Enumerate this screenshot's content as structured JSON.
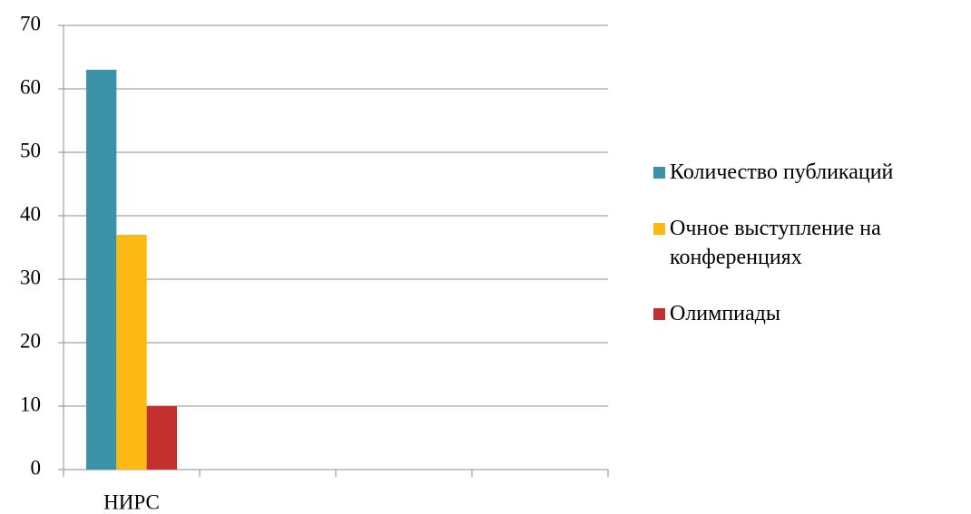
{
  "chart_data": {
    "type": "bar",
    "categories": [
      "НИРС",
      null,
      null,
      null
    ],
    "series": [
      {
        "name": "Количество публикаций",
        "color": "#3a93a8",
        "values": [
          63,
          null,
          null,
          null
        ]
      },
      {
        "name": "Очное выступление на конференциях",
        "color": "#fdb913",
        "values": [
          37,
          null,
          null,
          null
        ]
      },
      {
        "name": "Олимпиады",
        "color": "#c3312f",
        "values": [
          10,
          null,
          null,
          null
        ]
      }
    ],
    "ylim": [
      0,
      70
    ],
    "yticks": [
      0,
      10,
      20,
      30,
      40,
      50,
      60,
      70
    ],
    "grid": true,
    "legend": "right"
  }
}
